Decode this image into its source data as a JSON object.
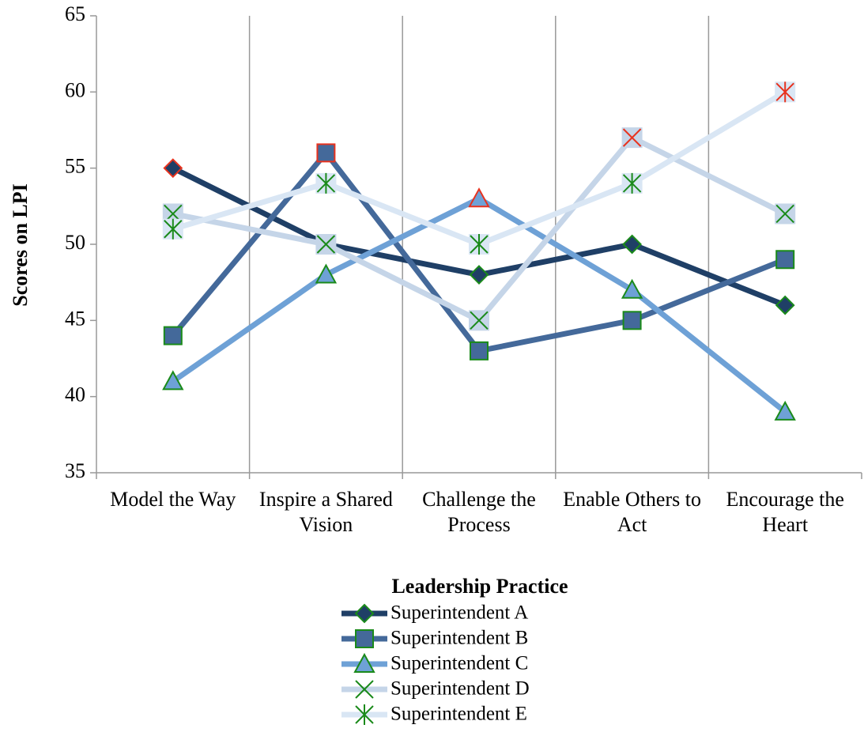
{
  "chart_data": {
    "type": "line",
    "x_label": "Leadership Practice",
    "y_label": "Scores on LPI",
    "categories": [
      "Model the Way",
      "Inspire a Shared Vision",
      "Challenge the Process",
      "Enable Others to Act",
      "Encourage the Heart"
    ],
    "series": [
      {
        "name": "Superintendent A",
        "color": "#1f3f66",
        "marker": "diamond",
        "values": [
          55,
          50,
          48,
          50,
          46
        ]
      },
      {
        "name": "Superintendent B",
        "color": "#44699a",
        "marker": "square",
        "values": [
          44,
          56,
          43,
          45,
          49
        ]
      },
      {
        "name": "Superintendent C",
        "color": "#6ea1d6",
        "marker": "triangle",
        "values": [
          41,
          48,
          53,
          47,
          39
        ]
      },
      {
        "name": "Superintendent D",
        "color": "#c5d5e8",
        "marker": "x",
        "values": [
          52,
          50,
          45,
          57,
          52
        ]
      },
      {
        "name": "Superintendent E",
        "color": "#d9e6f4",
        "marker": "asterisk",
        "values": [
          51,
          54,
          50,
          54,
          60
        ]
      }
    ],
    "ylim": [
      35,
      65
    ],
    "yticks": [
      35,
      40,
      45,
      50,
      55,
      60,
      65
    ],
    "grid": "vertical",
    "legend": "bottom"
  }
}
